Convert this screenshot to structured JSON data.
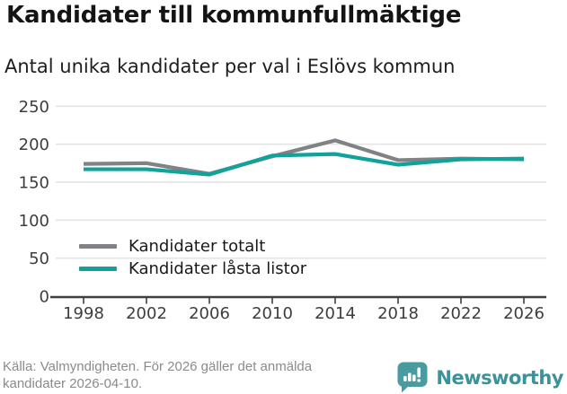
{
  "header": {
    "title": "Kandidater till kommunfullmäktige",
    "subtitle": "Antal unika kandidater per val i Eslövs kommun"
  },
  "chart_data": {
    "type": "line",
    "title": "Kandidater till kommunfullmäktige",
    "subtitle": "Antal unika kandidater per val i Eslövs kommun",
    "x": [
      1998,
      2002,
      2006,
      2010,
      2014,
      2018,
      2022,
      2026
    ],
    "series": [
      {
        "name": "Kandidater totalt",
        "color": "#808285",
        "values": [
          174,
          175,
          161,
          184,
          205,
          179,
          181,
          180
        ]
      },
      {
        "name": "Kandidater låsta listor",
        "color": "#11A29B",
        "values": [
          167,
          167,
          160,
          185,
          187,
          173,
          180,
          181
        ]
      }
    ],
    "ylim": [
      0,
      250
    ],
    "yticks": [
      0,
      50,
      100,
      150,
      200,
      250
    ],
    "xlabel": "",
    "ylabel": "",
    "grid": true,
    "legend_position": "inside-bottom-left"
  },
  "footer": {
    "source_line1": "Källa: Valmyndigheten. För 2026 gäller det anmälda",
    "source_line2": "kandidater 2026-04-10.",
    "brand": "Newsworthy",
    "brand_color": "#3A929A",
    "brand_icon_color": "#4A9BA0"
  }
}
